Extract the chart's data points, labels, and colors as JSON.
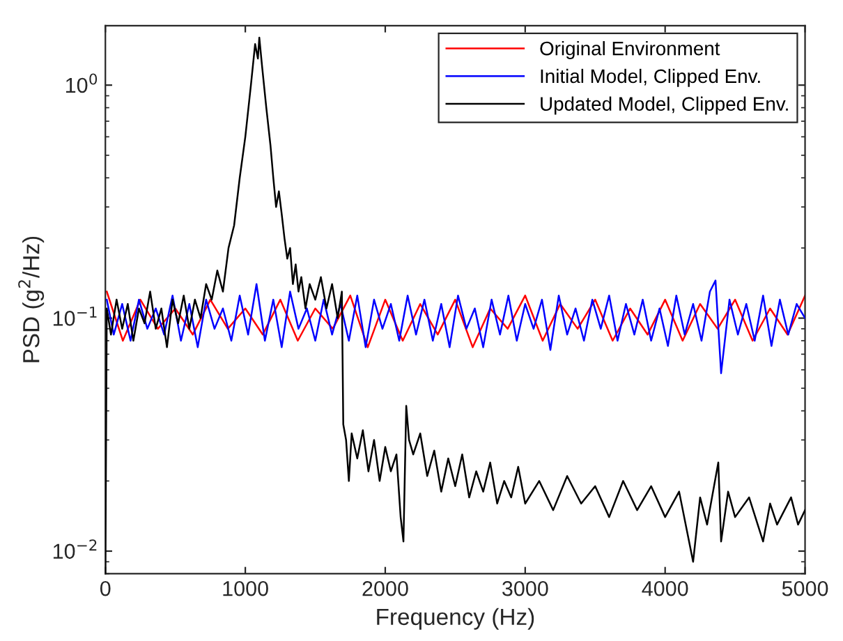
{
  "chart_data": {
    "type": "line",
    "xlabel": "Frequency (Hz)",
    "ylabel": "PSD (g$^{2}$/Hz)",
    "log": "y",
    "xlim": [
      0,
      5000
    ],
    "ylim": [
      0.008,
      1.8
    ],
    "xticks": [
      0,
      1000,
      2000,
      3000,
      4000,
      5000
    ],
    "yticks": [
      {
        "value": 0.01,
        "label": "10$^{−2}$"
      },
      {
        "value": 0.1,
        "label": "10$^{−1}$"
      },
      {
        "value": 1,
        "label": "10$^{0}$"
      }
    ],
    "legend": "top right",
    "grid": false,
    "marker": "none",
    "line_style": "solid",
    "series": [
      {
        "name": "Original Environment",
        "color": "#ff0000",
        "x": [
          10,
          125,
          250,
          375,
          500,
          625,
          750,
          875,
          1000,
          1125,
          1250,
          1375,
          1500,
          1625,
          1750,
          1875,
          2000,
          2125,
          2250,
          2375,
          2500,
          2625,
          2750,
          2875,
          3000,
          3125,
          3250,
          3375,
          3500,
          3625,
          3750,
          3875,
          4000,
          4125,
          4250,
          4375,
          4500,
          4625,
          4750,
          4875,
          5000
        ],
        "values": [
          0.13,
          0.08,
          0.12,
          0.09,
          0.11,
          0.085,
          0.12,
          0.09,
          0.11,
          0.085,
          0.12,
          0.08,
          0.11,
          0.09,
          0.125,
          0.075,
          0.12,
          0.08,
          0.115,
          0.085,
          0.12,
          0.075,
          0.11,
          0.09,
          0.125,
          0.08,
          0.115,
          0.09,
          0.12,
          0.08,
          0.11,
          0.085,
          0.12,
          0.08,
          0.115,
          0.09,
          0.12,
          0.08,
          0.11,
          0.085,
          0.125
        ]
      },
      {
        "name": "Initial Model, Clipped Env.",
        "color": "#0000ff",
        "x": [
          10,
          60,
          120,
          180,
          240,
          300,
          360,
          420,
          480,
          540,
          600,
          660,
          720,
          780,
          840,
          900,
          960,
          1020,
          1080,
          1140,
          1200,
          1260,
          1320,
          1380,
          1440,
          1500,
          1560,
          1620,
          1680,
          1740,
          1800,
          1860,
          1920,
          1980,
          2040,
          2100,
          2160,
          2220,
          2280,
          2340,
          2400,
          2460,
          2520,
          2580,
          2640,
          2700,
          2760,
          2820,
          2880,
          2940,
          3000,
          3060,
          3120,
          3180,
          3240,
          3300,
          3360,
          3420,
          3480,
          3540,
          3600,
          3660,
          3720,
          3780,
          3840,
          3900,
          3960,
          4020,
          4080,
          4140,
          4200,
          4260,
          4320,
          4360,
          4400,
          4460,
          4520,
          4580,
          4640,
          4700,
          4760,
          4820,
          4880,
          4940,
          5000
        ],
        "values": [
          0.12,
          0.085,
          0.115,
          0.08,
          0.12,
          0.09,
          0.11,
          0.085,
          0.125,
          0.08,
          0.115,
          0.075,
          0.12,
          0.09,
          0.11,
          0.08,
          0.125,
          0.085,
          0.14,
          0.08,
          0.12,
          0.075,
          0.13,
          0.09,
          0.11,
          0.08,
          0.12,
          0.085,
          0.115,
          0.08,
          0.125,
          0.075,
          0.12,
          0.09,
          0.115,
          0.08,
          0.125,
          0.085,
          0.12,
          0.08,
          0.115,
          0.075,
          0.125,
          0.09,
          0.11,
          0.075,
          0.12,
          0.085,
          0.125,
          0.08,
          0.115,
          0.09,
          0.12,
          0.073,
          0.125,
          0.085,
          0.11,
          0.08,
          0.12,
          0.09,
          0.125,
          0.08,
          0.115,
          0.085,
          0.12,
          0.08,
          0.11,
          0.076,
          0.125,
          0.085,
          0.115,
          0.08,
          0.13,
          0.145,
          0.058,
          0.12,
          0.085,
          0.115,
          0.08,
          0.125,
          0.076,
          0.12,
          0.085,
          0.115,
          0.1
        ]
      },
      {
        "name": "Updated Model, Clipped Env.",
        "color": "#000000",
        "x": [
          0,
          10,
          40,
          80,
          120,
          160,
          200,
          240,
          280,
          320,
          360,
          400,
          440,
          480,
          520,
          560,
          600,
          640,
          680,
          720,
          760,
          800,
          840,
          880,
          920,
          960,
          1000,
          1040,
          1070,
          1090,
          1100,
          1120,
          1150,
          1180,
          1200,
          1220,
          1240,
          1260,
          1280,
          1300,
          1320,
          1340,
          1360,
          1380,
          1400,
          1430,
          1460,
          1500,
          1540,
          1580,
          1620,
          1660,
          1690,
          1700,
          1720,
          1740,
          1760,
          1800,
          1840,
          1880,
          1920,
          1960,
          2000,
          2040,
          2080,
          2110,
          2130,
          2150,
          2170,
          2200,
          2250,
          2300,
          2350,
          2400,
          2450,
          2500,
          2550,
          2600,
          2650,
          2700,
          2750,
          2800,
          2850,
          2900,
          2950,
          3000,
          3100,
          3200,
          3300,
          3400,
          3500,
          3600,
          3700,
          3800,
          3900,
          4000,
          4100,
          4200,
          4250,
          4300,
          4380,
          4400,
          4450,
          4500,
          4600,
          4700,
          4750,
          4800,
          4900,
          4950,
          5000
        ],
        "values": [
          0.008,
          0.11,
          0.085,
          0.12,
          0.09,
          0.115,
          0.08,
          0.11,
          0.095,
          0.13,
          0.09,
          0.11,
          0.075,
          0.12,
          0.095,
          0.125,
          0.09,
          0.12,
          0.1,
          0.14,
          0.12,
          0.16,
          0.13,
          0.2,
          0.25,
          0.4,
          0.6,
          1.0,
          1.5,
          1.3,
          1.6,
          1.2,
          0.8,
          0.55,
          0.4,
          0.3,
          0.35,
          0.28,
          0.22,
          0.18,
          0.2,
          0.14,
          0.17,
          0.13,
          0.15,
          0.11,
          0.14,
          0.12,
          0.15,
          0.11,
          0.14,
          0.1,
          0.13,
          0.035,
          0.03,
          0.02,
          0.032,
          0.025,
          0.033,
          0.022,
          0.03,
          0.02,
          0.028,
          0.022,
          0.026,
          0.014,
          0.011,
          0.042,
          0.03,
          0.026,
          0.032,
          0.021,
          0.027,
          0.018,
          0.025,
          0.019,
          0.026,
          0.017,
          0.022,
          0.018,
          0.024,
          0.016,
          0.02,
          0.017,
          0.023,
          0.016,
          0.02,
          0.015,
          0.021,
          0.016,
          0.019,
          0.014,
          0.02,
          0.015,
          0.019,
          0.014,
          0.018,
          0.009,
          0.017,
          0.013,
          0.024,
          0.011,
          0.018,
          0.014,
          0.017,
          0.011,
          0.016,
          0.013,
          0.017,
          0.013,
          0.015
        ]
      }
    ]
  }
}
